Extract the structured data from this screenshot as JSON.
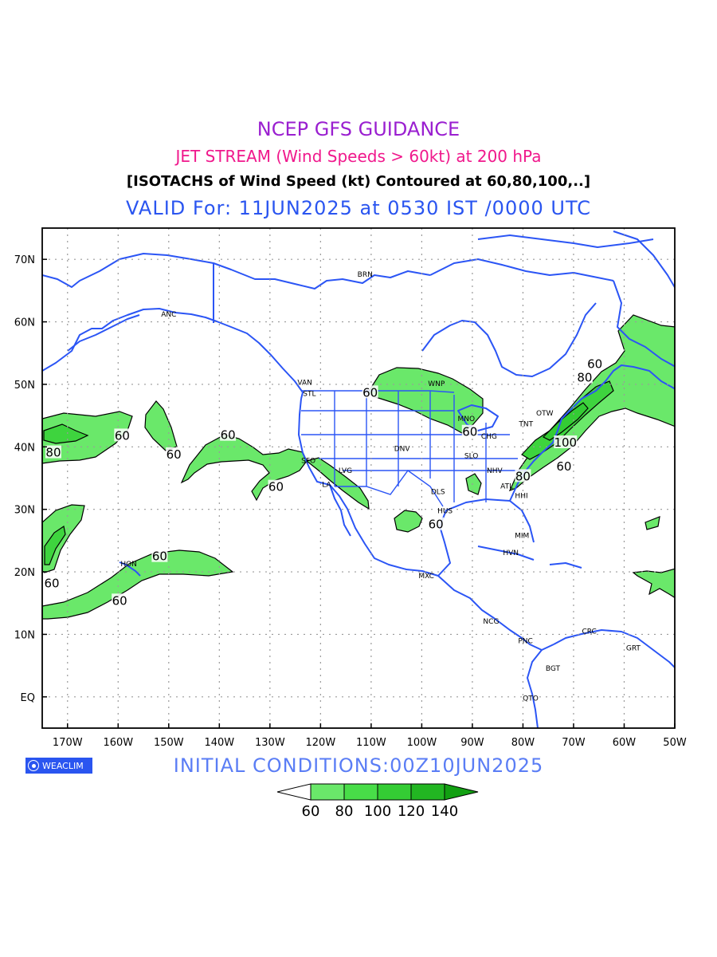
{
  "title": "NCEP GFS GUIDANCE",
  "subtitle": "JET STREAM (Wind Speeds > 60kt) at 200 hPa",
  "description": "[ISOTACHS of Wind Speed (kt) Contoured at 60,80,100,..]",
  "valid": "VALID For: 11JUN2025 at 0530 IST /0000 UTC",
  "initial": "INITIAL CONDITIONS:00Z10JUN2025",
  "logo": "WEACLIM",
  "colors": {
    "land": "#2b55f5",
    "fill60": "#6ae86a",
    "fill80": "#3ed43e",
    "contour": "#000000"
  },
  "lon_ticks": [
    "170W",
    "160W",
    "150W",
    "140W",
    "130W",
    "120W",
    "110W",
    "100W",
    "90W",
    "80W",
    "70W",
    "60W",
    "50W"
  ],
  "lat_ticks": [
    "70N",
    "60N",
    "50N",
    "40N",
    "30N",
    "20N",
    "10N",
    "EQ"
  ],
  "colorbar_labels": [
    "60",
    "80",
    "100",
    "120",
    "140"
  ],
  "colorbar_colors": [
    "#ffffff",
    "#6ae86a",
    "#48dd48",
    "#34cc34",
    "#22b622",
    "#12a012"
  ],
  "stations": [
    {
      "name": "ANC",
      "lon": -150,
      "lat": 61.2
    },
    {
      "name": "BRN",
      "lon": -111.2,
      "lat": 67.6
    },
    {
      "name": "VAN",
      "lon": -123.1,
      "lat": 50.3
    },
    {
      "name": "STL",
      "lon": -122.2,
      "lat": 48.5
    },
    {
      "name": "WNP",
      "lon": -97.1,
      "lat": 50.1
    },
    {
      "name": "MNO",
      "lon": -91.2,
      "lat": 44.5
    },
    {
      "name": "TNT",
      "lon": -79.4,
      "lat": 43.7
    },
    {
      "name": "OTW",
      "lon": -75.7,
      "lat": 45.4
    },
    {
      "name": "CHG",
      "lon": -86.7,
      "lat": 41.7
    },
    {
      "name": "DNV",
      "lon": -103.9,
      "lat": 39.7
    },
    {
      "name": "SLO",
      "lon": -90.2,
      "lat": 38.6
    },
    {
      "name": "NHV",
      "lon": -85.6,
      "lat": 36.2
    },
    {
      "name": "SFO",
      "lon": -122.4,
      "lat": 37.8
    },
    {
      "name": "LVG",
      "lon": -115.1,
      "lat": 36.2
    },
    {
      "name": "LA",
      "lon": -118.8,
      "lat": 34
    },
    {
      "name": "DLS",
      "lon": -96.8,
      "lat": 32.8
    },
    {
      "name": "ATL",
      "lon": -83.2,
      "lat": 33.7
    },
    {
      "name": "HHI",
      "lon": -80.3,
      "lat": 32.2
    },
    {
      "name": "HUS",
      "lon": -95.4,
      "lat": 29.8
    },
    {
      "name": "MIM",
      "lon": -80.2,
      "lat": 25.8
    },
    {
      "name": "HVN",
      "lon": -82.4,
      "lat": 23.1
    },
    {
      "name": "HON",
      "lon": -157.9,
      "lat": 21.3
    },
    {
      "name": "MXC",
      "lon": -99.1,
      "lat": 19.4
    },
    {
      "name": "NCG",
      "lon": -86.3,
      "lat": 12.1
    },
    {
      "name": "CRC",
      "lon": -66.9,
      "lat": 10.5
    },
    {
      "name": "GRT",
      "lon": -58.2,
      "lat": 7.8
    },
    {
      "name": "PNC",
      "lon": -79.5,
      "lat": 9
    },
    {
      "name": "BGT",
      "lon": -74.1,
      "lat": 4.6
    },
    {
      "name": "QTO",
      "lon": -78.5,
      "lat": -0.2
    }
  ],
  "contour_labels": [
    {
      "text": "60",
      "lon": -159.2,
      "lat": 41.9
    },
    {
      "text": "80",
      "lon": -172.8,
      "lat": 39.2
    },
    {
      "text": "60",
      "lon": -149,
      "lat": 38.9
    },
    {
      "text": "60",
      "lon": -138.3,
      "lat": 42
    },
    {
      "text": "60",
      "lon": -128.8,
      "lat": 33.7
    },
    {
      "text": "60",
      "lon": -110.2,
      "lat": 48.8
    },
    {
      "text": "60",
      "lon": -90.5,
      "lat": 42.5
    },
    {
      "text": "60",
      "lon": -97.2,
      "lat": 27.7
    },
    {
      "text": "80",
      "lon": -80,
      "lat": 35.4
    },
    {
      "text": "60",
      "lon": -71.9,
      "lat": 37
    },
    {
      "text": "100",
      "lon": -71.6,
      "lat": 40.8
    },
    {
      "text": "80",
      "lon": -67.8,
      "lat": 51.2
    },
    {
      "text": "60",
      "lon": -65.8,
      "lat": 53.4
    },
    {
      "text": "60",
      "lon": -151.8,
      "lat": 22.6
    },
    {
      "text": "60",
      "lon": -173.1,
      "lat": 18.3
    },
    {
      "text": "60",
      "lon": -159.7,
      "lat": 15.5
    }
  ]
}
